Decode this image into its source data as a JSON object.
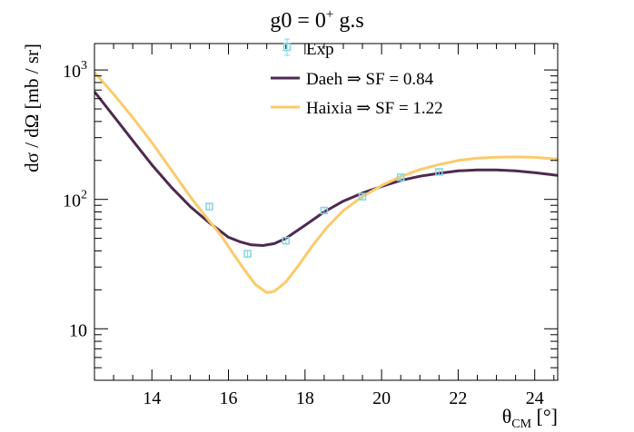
{
  "chart_data": {
    "type": "line",
    "title_main": "g0 = 0",
    "title_sup": "+",
    "title_rest": " g.s",
    "xlabel_main": "θ",
    "xlabel_sub": "CM",
    "xlabel_rest": " [°]",
    "ylabel": "dσ / dΩ [mb / sr]",
    "xlim": [
      12.5,
      24.6
    ],
    "ylim": [
      4,
      1600
    ],
    "ylog": true,
    "grid": false,
    "legend_position": "top-right",
    "x_ticks": [
      {
        "value": 14,
        "label": "14"
      },
      {
        "value": 16,
        "label": "16"
      },
      {
        "value": 18,
        "label": "18"
      },
      {
        "value": 20,
        "label": "20"
      },
      {
        "value": 22,
        "label": "22"
      },
      {
        "value": 24,
        "label": "24"
      }
    ],
    "y_ticks": [
      {
        "value": 10,
        "label": "10"
      },
      {
        "value": 100,
        "label": "10",
        "exp": "2"
      },
      {
        "value": 1000,
        "label": "10",
        "exp": "3"
      }
    ],
    "experiment": {
      "name": "Exp",
      "color": "#7fd7e6",
      "points": [
        {
          "x": 15.5,
          "y": 88,
          "err": 5
        },
        {
          "x": 16.5,
          "y": 38,
          "err": 2.5
        },
        {
          "x": 17.5,
          "y": 48,
          "err": 3
        },
        {
          "x": 18.5,
          "y": 82,
          "err": 4.5
        },
        {
          "x": 19.5,
          "y": 105,
          "err": 5.5
        },
        {
          "x": 20.5,
          "y": 148,
          "err": 7
        },
        {
          "x": 21.5,
          "y": 163,
          "err": 8
        }
      ]
    },
    "series": [
      {
        "name": "Daeh ⇒ SF = 0.84",
        "color": "#4d2a4f",
        "x": [
          12.5,
          13.0,
          13.5,
          14.0,
          14.5,
          15.0,
          15.5,
          16.0,
          16.3,
          16.6,
          16.9,
          17.2,
          17.5,
          18.0,
          18.5,
          19.0,
          19.5,
          20.0,
          20.5,
          21.0,
          21.5,
          22.0,
          22.5,
          23.0,
          23.5,
          24.0,
          24.6
        ],
        "y": [
          680,
          440,
          285,
          185,
          125,
          88,
          66,
          51,
          47,
          44.5,
          44,
          45.5,
          50,
          63,
          80,
          97,
          112,
          126,
          140,
          151,
          159,
          166,
          169,
          169,
          166,
          161,
          153
        ]
      },
      {
        "name": "Haixia ⇒ SF = 1.22",
        "color": "#fcca6c",
        "x": [
          12.5,
          13.0,
          13.5,
          14.0,
          14.5,
          15.0,
          15.5,
          15.8,
          16.1,
          16.4,
          16.7,
          17.0,
          17.2,
          17.5,
          17.8,
          18.2,
          18.6,
          19.0,
          19.5,
          20.0,
          20.5,
          21.0,
          21.5,
          22.0,
          22.5,
          23.0,
          23.5,
          24.0,
          24.6
        ],
        "y": [
          960,
          650,
          430,
          275,
          170,
          105,
          68,
          53,
          39,
          29,
          22,
          19,
          19.5,
          23,
          30,
          44,
          62,
          82,
          105,
          128,
          150,
          170,
          186,
          200,
          208,
          212,
          213,
          211,
          205
        ]
      }
    ]
  }
}
